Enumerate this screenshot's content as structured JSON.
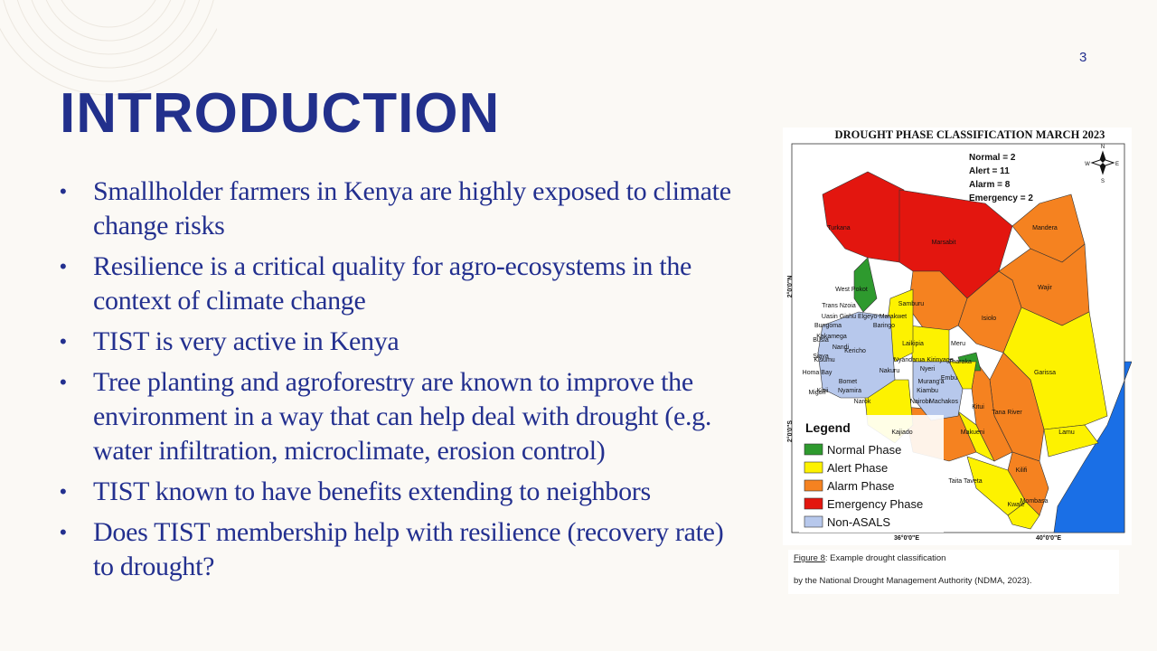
{
  "slide_number": "3",
  "title": "INTRODUCTION",
  "bullets": [
    "Smallholder farmers in Kenya are highly exposed to climate change risks",
    "Resilience is a critical quality for agro-ecosystems in the context of climate change",
    "TIST is very active in Kenya",
    "Tree planting and agroforestry are known to improve the environment in a way that can help deal with drought (e.g. water infiltration, microclimate, erosion control)",
    "TIST known to have benefits extending to neighbors",
    "Does TIST membership help with resilience (recovery rate) to drought?"
  ],
  "figure": {
    "map": {
      "title": "DROUGHT PHASE CLASSIFICATION MARCH 2023",
      "stats": [
        "Normal = 2",
        "Alert = 11",
        "Alarm = 8",
        "Emergency = 2"
      ],
      "compass": [
        "N",
        "E",
        "S",
        "W"
      ],
      "legend_title": "Legend",
      "legend": [
        "Normal Phase",
        "Alert Phase",
        "Alarm Phase",
        "Emergency Phase",
        "Non-ASALS"
      ],
      "axis_labels": [
        "2°0'0\"N",
        "2°0'0\"S",
        "36°0'0\"E",
        "40°0'0\"E"
      ],
      "counties": [
        "Turkana",
        "Marsabit",
        "Mandera",
        "Wajir",
        "West Pokot",
        "Samburu",
        "Isiolo",
        "Garissa",
        "Trans Nzoia",
        "Uasin Gishu",
        "Elgeyo-Marakwet",
        "Baringo",
        "Bungoma",
        "Kakamega",
        "Busia",
        "Siaya",
        "Nandi",
        "Kericho",
        "Kisumu",
        "Homa Bay",
        "Bomet",
        "Kisii",
        "Nyamira",
        "Migori",
        "Narok",
        "Laikipia",
        "Meru",
        "Nakuru",
        "Nyandarua",
        "Nyeri",
        "Kirinyaga",
        "Tharaka",
        "Embu",
        "Murang'a",
        "Kiambu",
        "Nairobi",
        "Machakos",
        "Kitui",
        "Tana River",
        "Lamu",
        "Kajiado",
        "Makueni",
        "Kilifi",
        "Taita Taveta",
        "Mombasa",
        "Kwale"
      ]
    },
    "caption": {
      "label": "Figure 8",
      "line1": ": Example drought classification",
      "line2": "by the National Drought Management Authority (NDMA, 2023)."
    }
  }
}
